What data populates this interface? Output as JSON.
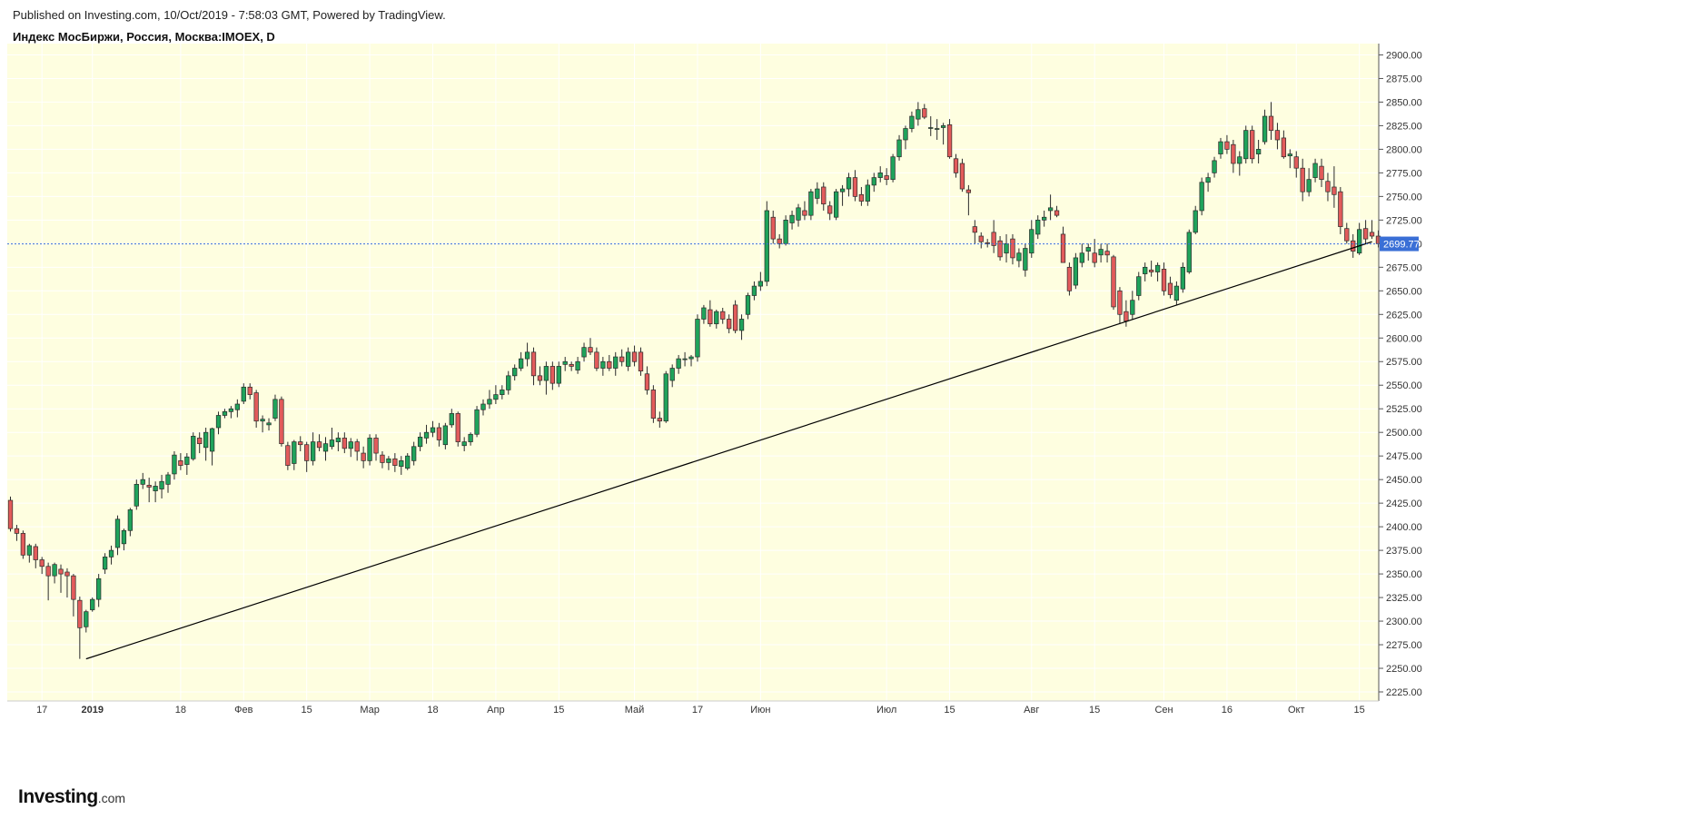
{
  "header": {
    "published": "Published on Investing.com, 10/Oct/2019 - 7:58:03 GMT, Powered by TradingView.",
    "symbol": "Индекс МосБиржи, Россия, Москва:IMOEX, D"
  },
  "logo": {
    "brand": "Investing",
    "suffix": ".com"
  },
  "colors": {
    "plot_background": "#fefee0",
    "up": "#1fa35b",
    "down": "#e25b5b",
    "grid": "#ffffff",
    "last_price_line": "#3a6fd6",
    "trendline": "#000000"
  },
  "chart_data": {
    "type": "candlestick",
    "title": "",
    "xlabel": "",
    "ylabel": "",
    "ylim": [
      2225,
      2912
    ],
    "y_ticks": [
      "2225.00",
      "2250.00",
      "2275.00",
      "2300.00",
      "2325.00",
      "2350.00",
      "2375.00",
      "2400.00",
      "2425.00",
      "2450.00",
      "2475.00",
      "2500.00",
      "2525.00",
      "2550.00",
      "2575.00",
      "2600.00",
      "2625.00",
      "2650.00",
      "2675.00",
      "2700.00",
      "2725.00",
      "2750.00",
      "2775.00",
      "2800.00",
      "2825.00",
      "2850.00",
      "2875.00",
      "2900.00"
    ],
    "last_price": "2699.77",
    "x_ticks": [
      {
        "label": "17",
        "bar": 5,
        "bold": false
      },
      {
        "label": "2019",
        "bar": 13,
        "bold": true
      },
      {
        "label": "18",
        "bar": 27,
        "bold": false
      },
      {
        "label": "Фев",
        "bar": 37,
        "bold": false
      },
      {
        "label": "15",
        "bar": 47,
        "bold": false
      },
      {
        "label": "Мар",
        "bar": 57,
        "bold": false
      },
      {
        "label": "18",
        "bar": 67,
        "bold": false
      },
      {
        "label": "Апр",
        "bar": 77,
        "bold": false
      },
      {
        "label": "15",
        "bar": 87,
        "bold": false
      },
      {
        "label": "Май",
        "bar": 99,
        "bold": false
      },
      {
        "label": "17",
        "bar": 109,
        "bold": false
      },
      {
        "label": "Июн",
        "bar": 119,
        "bold": false
      },
      {
        "label": "Июл",
        "bar": 139,
        "bold": false
      },
      {
        "label": "15",
        "bar": 149,
        "bold": false
      },
      {
        "label": "Авг",
        "bar": 162,
        "bold": false
      },
      {
        "label": "15",
        "bar": 172,
        "bold": false
      },
      {
        "label": "Сен",
        "bar": 183,
        "bold": false
      },
      {
        "label": "16",
        "bar": 193,
        "bold": false
      },
      {
        "label": "Окт",
        "bar": 204,
        "bold": false
      },
      {
        "label": "15",
        "bar": 214,
        "bold": false
      }
    ],
    "trendline": {
      "from": {
        "bar": 12,
        "value": 2260
      },
      "to": {
        "bar": 216,
        "value": 2702
      }
    },
    "candles": [
      [
        2428,
        2432,
        2395,
        2398
      ],
      [
        2398,
        2402,
        2385,
        2393
      ],
      [
        2393,
        2396,
        2366,
        2370
      ],
      [
        2370,
        2382,
        2362,
        2380
      ],
      [
        2379,
        2382,
        2356,
        2365
      ],
      [
        2365,
        2368,
        2350,
        2358
      ],
      [
        2358,
        2362,
        2322,
        2348
      ],
      [
        2348,
        2362,
        2340,
        2360
      ],
      [
        2355,
        2360,
        2330,
        2350
      ],
      [
        2352,
        2356,
        2325,
        2348
      ],
      [
        2348,
        2350,
        2305,
        2323
      ],
      [
        2322,
        2326,
        2260,
        2293
      ],
      [
        2294,
        2312,
        2288,
        2310
      ],
      [
        2312,
        2325,
        2310,
        2323
      ],
      [
        2323,
        2350,
        2315,
        2345
      ],
      [
        2355,
        2372,
        2350,
        2368
      ],
      [
        2368,
        2380,
        2360,
        2375
      ],
      [
        2378,
        2412,
        2370,
        2408
      ],
      [
        2382,
        2398,
        2375,
        2396
      ],
      [
        2396,
        2420,
        2390,
        2418
      ],
      [
        2422,
        2450,
        2418,
        2445
      ],
      [
        2445,
        2457,
        2440,
        2450
      ],
      [
        2444,
        2452,
        2426,
        2442
      ],
      [
        2438,
        2448,
        2426,
        2443
      ],
      [
        2440,
        2455,
        2430,
        2448
      ],
      [
        2445,
        2458,
        2436,
        2455
      ],
      [
        2456,
        2480,
        2450,
        2476
      ],
      [
        2470,
        2478,
        2460,
        2465
      ],
      [
        2466,
        2478,
        2455,
        2474
      ],
      [
        2472,
        2500,
        2470,
        2496
      ],
      [
        2494,
        2500,
        2478,
        2488
      ],
      [
        2484,
        2505,
        2470,
        2500
      ],
      [
        2480,
        2505,
        2465,
        2504
      ],
      [
        2505,
        2522,
        2498,
        2518
      ],
      [
        2518,
        2525,
        2515,
        2522
      ],
      [
        2522,
        2528,
        2515,
        2525
      ],
      [
        2524,
        2535,
        2516,
        2530
      ],
      [
        2533,
        2552,
        2530,
        2548
      ],
      [
        2548,
        2552,
        2535,
        2540
      ],
      [
        2542,
        2545,
        2505,
        2512
      ],
      [
        2512,
        2518,
        2500,
        2514
      ],
      [
        2508,
        2515,
        2502,
        2510
      ],
      [
        2515,
        2540,
        2512,
        2535
      ],
      [
        2535,
        2538,
        2485,
        2488
      ],
      [
        2486,
        2490,
        2460,
        2465
      ],
      [
        2467,
        2492,
        2460,
        2490
      ],
      [
        2490,
        2496,
        2480,
        2487
      ],
      [
        2487,
        2490,
        2458,
        2470
      ],
      [
        2470,
        2500,
        2465,
        2490
      ],
      [
        2490,
        2498,
        2480,
        2484
      ],
      [
        2480,
        2495,
        2470,
        2488
      ],
      [
        2485,
        2505,
        2482,
        2492
      ],
      [
        2490,
        2500,
        2480,
        2494
      ],
      [
        2494,
        2500,
        2478,
        2483
      ],
      [
        2483,
        2494,
        2474,
        2490
      ],
      [
        2490,
        2493,
        2470,
        2480
      ],
      [
        2478,
        2485,
        2462,
        2470
      ],
      [
        2470,
        2498,
        2465,
        2494
      ],
      [
        2494,
        2498,
        2470,
        2478
      ],
      [
        2476,
        2480,
        2462,
        2468
      ],
      [
        2468,
        2475,
        2460,
        2472
      ],
      [
        2472,
        2478,
        2458,
        2465
      ],
      [
        2464,
        2475,
        2455,
        2470
      ],
      [
        2462,
        2478,
        2460,
        2475
      ],
      [
        2470,
        2490,
        2465,
        2485
      ],
      [
        2485,
        2500,
        2480,
        2495
      ],
      [
        2494,
        2508,
        2488,
        2500
      ],
      [
        2500,
        2512,
        2495,
        2505
      ],
      [
        2505,
        2510,
        2485,
        2492
      ],
      [
        2487,
        2510,
        2482,
        2507
      ],
      [
        2508,
        2525,
        2505,
        2520
      ],
      [
        2520,
        2522,
        2485,
        2490
      ],
      [
        2486,
        2495,
        2480,
        2490
      ],
      [
        2490,
        2500,
        2486,
        2498
      ],
      [
        2498,
        2528,
        2495,
        2524
      ],
      [
        2524,
        2535,
        2518,
        2530
      ],
      [
        2530,
        2545,
        2525,
        2535
      ],
      [
        2535,
        2550,
        2530,
        2540
      ],
      [
        2540,
        2550,
        2535,
        2545
      ],
      [
        2545,
        2565,
        2540,
        2560
      ],
      [
        2560,
        2572,
        2555,
        2568
      ],
      [
        2568,
        2585,
        2565,
        2578
      ],
      [
        2578,
        2595,
        2570,
        2585
      ],
      [
        2585,
        2590,
        2550,
        2560
      ],
      [
        2560,
        2570,
        2550,
        2555
      ],
      [
        2555,
        2575,
        2540,
        2570
      ],
      [
        2570,
        2575,
        2545,
        2552
      ],
      [
        2552,
        2575,
        2548,
        2570
      ],
      [
        2572,
        2580,
        2565,
        2575
      ],
      [
        2572,
        2575,
        2565,
        2570
      ],
      [
        2566,
        2580,
        2562,
        2575
      ],
      [
        2580,
        2595,
        2575,
        2590
      ],
      [
        2590,
        2600,
        2582,
        2585
      ],
      [
        2585,
        2590,
        2565,
        2568
      ],
      [
        2568,
        2580,
        2560,
        2575
      ],
      [
        2575,
        2582,
        2565,
        2568
      ],
      [
        2568,
        2585,
        2560,
        2580
      ],
      [
        2580,
        2588,
        2570,
        2575
      ],
      [
        2570,
        2590,
        2565,
        2585
      ],
      [
        2585,
        2592,
        2570,
        2575
      ],
      [
        2585,
        2590,
        2560,
        2565
      ],
      [
        2562,
        2570,
        2540,
        2545
      ],
      [
        2545,
        2550,
        2510,
        2515
      ],
      [
        2515,
        2522,
        2505,
        2512
      ],
      [
        2512,
        2565,
        2510,
        2562
      ],
      [
        2555,
        2572,
        2548,
        2568
      ],
      [
        2568,
        2582,
        2562,
        2578
      ],
      [
        2578,
        2585,
        2570,
        2578
      ],
      [
        2578,
        2582,
        2570,
        2580
      ],
      [
        2580,
        2625,
        2575,
        2620
      ],
      [
        2620,
        2635,
        2615,
        2632
      ],
      [
        2630,
        2640,
        2612,
        2615
      ],
      [
        2615,
        2630,
        2610,
        2628
      ],
      [
        2628,
        2632,
        2615,
        2620
      ],
      [
        2620,
        2625,
        2605,
        2610
      ],
      [
        2635,
        2640,
        2605,
        2608
      ],
      [
        2608,
        2625,
        2598,
        2620
      ],
      [
        2625,
        2648,
        2620,
        2645
      ],
      [
        2645,
        2660,
        2640,
        2655
      ],
      [
        2655,
        2670,
        2650,
        2660
      ],
      [
        2660,
        2745,
        2655,
        2735
      ],
      [
        2728,
        2735,
        2700,
        2705
      ],
      [
        2705,
        2710,
        2695,
        2700
      ],
      [
        2700,
        2730,
        2698,
        2725
      ],
      [
        2722,
        2735,
        2715,
        2730
      ],
      [
        2725,
        2742,
        2718,
        2738
      ],
      [
        2735,
        2745,
        2725,
        2730
      ],
      [
        2730,
        2758,
        2725,
        2755
      ],
      [
        2748,
        2765,
        2742,
        2758
      ],
      [
        2760,
        2765,
        2735,
        2742
      ],
      [
        2740,
        2745,
        2725,
        2732
      ],
      [
        2728,
        2758,
        2725,
        2755
      ],
      [
        2755,
        2762,
        2740,
        2758
      ],
      [
        2758,
        2775,
        2750,
        2770
      ],
      [
        2770,
        2778,
        2745,
        2750
      ],
      [
        2752,
        2760,
        2740,
        2745
      ],
      [
        2745,
        2768,
        2740,
        2762
      ],
      [
        2762,
        2775,
        2755,
        2770
      ],
      [
        2770,
        2782,
        2765,
        2775
      ],
      [
        2772,
        2780,
        2762,
        2768
      ],
      [
        2768,
        2795,
        2765,
        2792
      ],
      [
        2792,
        2815,
        2788,
        2810
      ],
      [
        2810,
        2825,
        2800,
        2822
      ],
      [
        2822,
        2840,
        2818,
        2835
      ],
      [
        2832,
        2850,
        2825,
        2842
      ],
      [
        2843,
        2848,
        2832,
        2834
      ],
      [
        2823,
        2835,
        2814,
        2823
      ],
      [
        2822,
        2832,
        2810,
        2822
      ],
      [
        2823,
        2828,
        2805,
        2825
      ],
      [
        2826,
        2832,
        2790,
        2792
      ],
      [
        2790,
        2795,
        2770,
        2775
      ],
      [
        2785,
        2790,
        2755,
        2758
      ],
      [
        2757,
        2762,
        2730,
        2754
      ],
      [
        2718,
        2725,
        2700,
        2712
      ],
      [
        2708,
        2712,
        2695,
        2702
      ],
      [
        2701,
        2705,
        2696,
        2700
      ],
      [
        2712,
        2725,
        2690,
        2698
      ],
      [
        2703,
        2708,
        2682,
        2686
      ],
      [
        2690,
        2710,
        2680,
        2700
      ],
      [
        2705,
        2710,
        2678,
        2685
      ],
      [
        2682,
        2695,
        2675,
        2690
      ],
      [
        2672,
        2700,
        2665,
        2695
      ],
      [
        2690,
        2725,
        2685,
        2715
      ],
      [
        2710,
        2730,
        2705,
        2725
      ],
      [
        2725,
        2735,
        2718,
        2728
      ],
      [
        2735,
        2752,
        2725,
        2738
      ],
      [
        2735,
        2740,
        2728,
        2730
      ],
      [
        2710,
        2718,
        2680,
        2680
      ],
      [
        2675,
        2680,
        2645,
        2650
      ],
      [
        2656,
        2690,
        2652,
        2685
      ],
      [
        2680,
        2700,
        2675,
        2690
      ],
      [
        2692,
        2700,
        2682,
        2696
      ],
      [
        2690,
        2705,
        2675,
        2680
      ],
      [
        2688,
        2700,
        2680,
        2694
      ],
      [
        2692,
        2700,
        2680,
        2688
      ],
      [
        2686,
        2688,
        2630,
        2633
      ],
      [
        2650,
        2654,
        2615,
        2625
      ],
      [
        2628,
        2640,
        2612,
        2618
      ],
      [
        2625,
        2650,
        2620,
        2640
      ],
      [
        2645,
        2670,
        2640,
        2665
      ],
      [
        2668,
        2680,
        2660,
        2675
      ],
      [
        2672,
        2682,
        2665,
        2670
      ],
      [
        2670,
        2680,
        2660,
        2677
      ],
      [
        2673,
        2680,
        2645,
        2650
      ],
      [
        2658,
        2665,
        2642,
        2646
      ],
      [
        2640,
        2660,
        2635,
        2655
      ],
      [
        2652,
        2680,
        2648,
        2675
      ],
      [
        2670,
        2715,
        2668,
        2712
      ],
      [
        2712,
        2740,
        2710,
        2735
      ],
      [
        2735,
        2770,
        2730,
        2765
      ],
      [
        2765,
        2775,
        2755,
        2770
      ],
      [
        2775,
        2792,
        2770,
        2788
      ],
      [
        2795,
        2812,
        2790,
        2808
      ],
      [
        2808,
        2815,
        2795,
        2800
      ],
      [
        2805,
        2810,
        2775,
        2785
      ],
      [
        2785,
        2798,
        2772,
        2792
      ],
      [
        2790,
        2825,
        2785,
        2820
      ],
      [
        2820,
        2825,
        2785,
        2790
      ],
      [
        2795,
        2810,
        2785,
        2800
      ],
      [
        2808,
        2842,
        2805,
        2835
      ],
      [
        2835,
        2850,
        2810,
        2820
      ],
      [
        2820,
        2828,
        2800,
        2810
      ],
      [
        2812,
        2820,
        2790,
        2792
      ],
      [
        2793,
        2800,
        2780,
        2795
      ],
      [
        2792,
        2798,
        2770,
        2780
      ],
      [
        2780,
        2790,
        2745,
        2755
      ],
      [
        2755,
        2780,
        2750,
        2768
      ],
      [
        2770,
        2790,
        2765,
        2785
      ],
      [
        2782,
        2790,
        2760,
        2768
      ],
      [
        2766,
        2775,
        2745,
        2755
      ],
      [
        2760,
        2782,
        2738,
        2752
      ],
      [
        2755,
        2760,
        2710,
        2718
      ],
      [
        2716,
        2722,
        2700,
        2703
      ],
      [
        2703,
        2710,
        2685,
        2692
      ],
      [
        2690,
        2722,
        2688,
        2715
      ],
      [
        2716,
        2725,
        2700,
        2705
      ],
      [
        2712,
        2725,
        2705,
        2708
      ],
      [
        2708,
        2714,
        2696,
        2700
      ]
    ]
  }
}
